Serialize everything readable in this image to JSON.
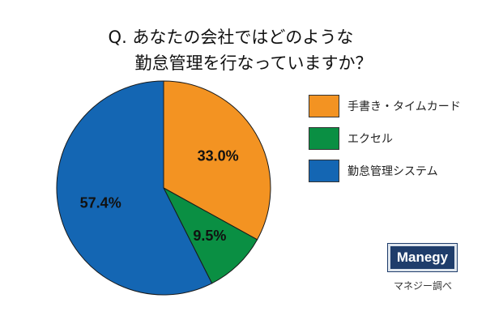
{
  "chart_data": {
    "type": "pie",
    "title_lines": [
      "Q. あなたの会社ではどのような",
      "勤怠管理を行なっていますか？"
    ],
    "slices": [
      {
        "label": "手書き・タイムカード",
        "value": 33.0,
        "display": "33.0%",
        "color": "#f39322"
      },
      {
        "label": "エクセル",
        "value": 9.5,
        "display": "9.5%",
        "color": "#0a8f43"
      },
      {
        "label": "勤怠管理システム",
        "value": 57.4,
        "display": "57.4%",
        "color": "#1466b3"
      }
    ],
    "start": "12 o'clock",
    "direction": "clockwise",
    "legend_position": "right"
  },
  "brand": {
    "logo_text": "Manegy",
    "source": "マネジー調べ"
  }
}
